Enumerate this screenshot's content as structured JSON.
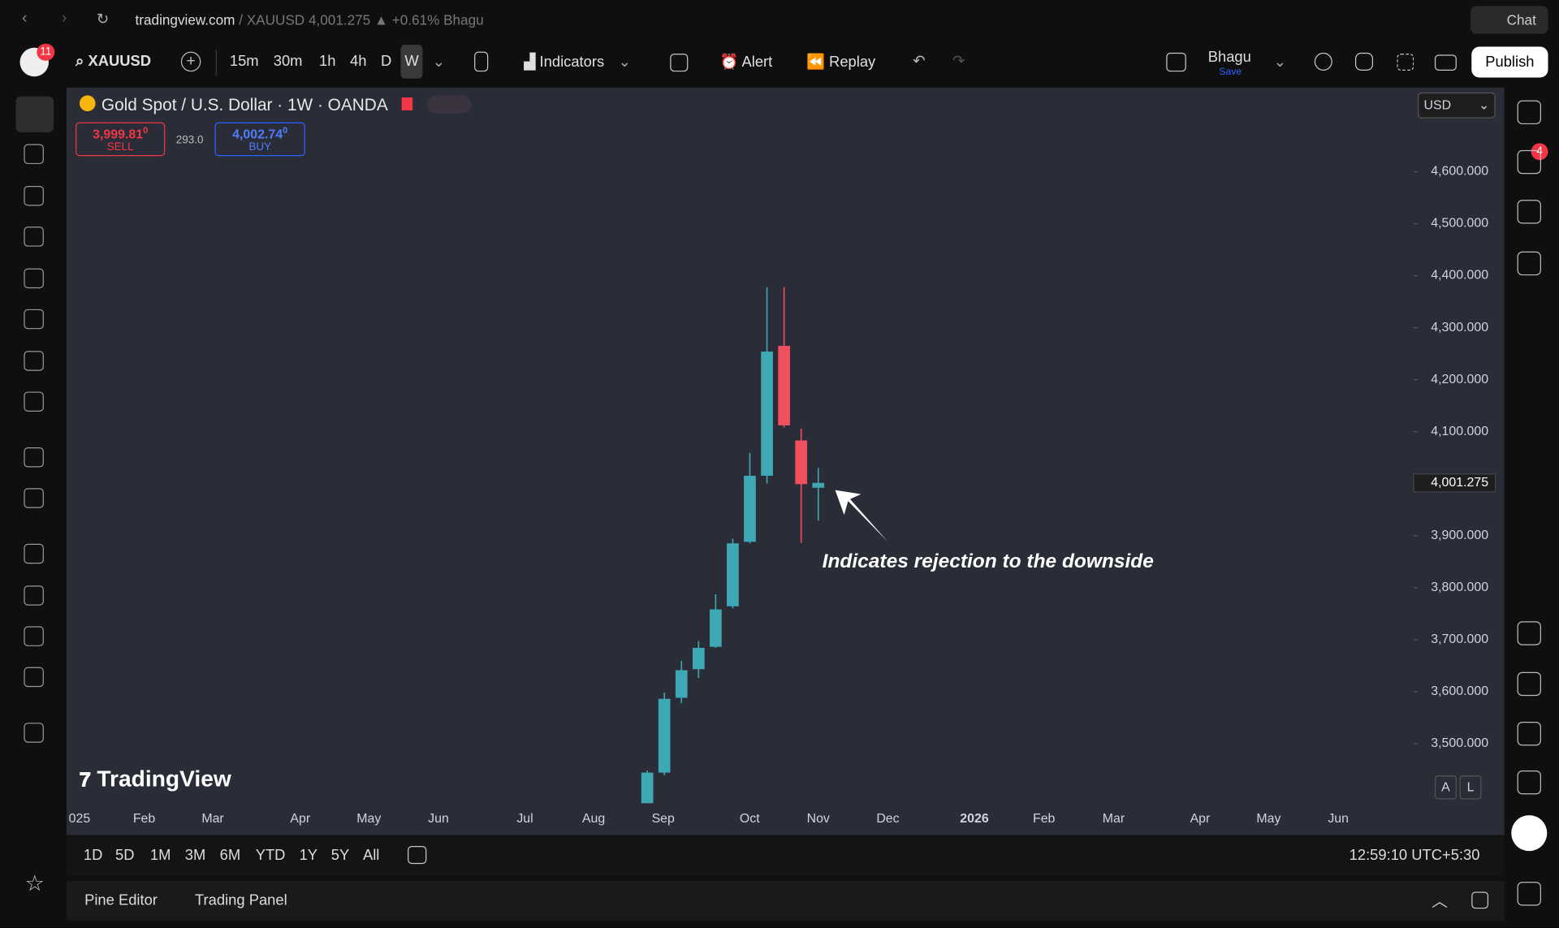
{
  "browser": {
    "domain": "tradingview.com",
    "tab_info": "/ XAUUSD 4,001.275 ▲ +0.61% Bhagu",
    "chat": "Chat"
  },
  "toolbar": {
    "badge": "11",
    "symbol": "XAUUSD",
    "intervals": [
      "15m",
      "30m",
      "1h",
      "4h",
      "D",
      "W"
    ],
    "indicators": "Indicators",
    "alert": "Alert",
    "replay": "Replay",
    "layout_name": "Bhagu",
    "save": "Save",
    "publish": "Publish"
  },
  "trade": {
    "sell_price": "3,999.81",
    "sell_sup": "0",
    "sell": "SELL",
    "spread": "293.0",
    "buy_price": "4,002.74",
    "buy_sup": "0",
    "buy": "BUY"
  },
  "currency": "USD",
  "alert_badge": "4",
  "logo": "TradingView",
  "scale_buttons": [
    "A",
    "L"
  ],
  "ranges": [
    "1D",
    "5D",
    "1M",
    "3M",
    "6M",
    "YTD",
    "1Y",
    "5Y",
    "All"
  ],
  "clock": "12:59:10 UTC+5:30",
  "panels": [
    "Pine Editor",
    "Trading Panel"
  ],
  "chart_data": {
    "type": "candlestick",
    "title": "Gold Spot / U.S. Dollar · 1W · OANDA",
    "open": [
      3385,
      3444,
      3588,
      3643,
      3686,
      3764,
      3888,
      4015,
      4265,
      4083,
      3992
    ],
    "high": [
      3448,
      3598,
      3659,
      3697,
      3787,
      3894,
      4059,
      4378,
      4378,
      4106,
      4030
    ],
    "low": [
      3385,
      3439,
      3578,
      3626,
      3684,
      3760,
      3885,
      4000,
      4108,
      3886,
      3929
    ],
    "close": [
      3444,
      3586,
      3641,
      3684,
      3758,
      3885,
      4015,
      4254,
      4112,
      3999,
      4001.275
    ],
    "up_color": "#3fa8b5",
    "down_color": "#f0505e",
    "ylim": [
      3385,
      4762
    ],
    "yticks": [
      {
        "value": 3500,
        "label": "3,500.000"
      },
      {
        "value": 3600,
        "label": "3,600.000"
      },
      {
        "value": 3700,
        "label": "3,700.000"
      },
      {
        "value": 3800,
        "label": "3,800.000"
      },
      {
        "value": 3900,
        "label": "3,900.000"
      },
      {
        "value": 4000,
        "label": "4,000.000"
      },
      {
        "value": 4100,
        "label": "4,100.000"
      },
      {
        "value": 4200,
        "label": "4,200.000"
      },
      {
        "value": 4300,
        "label": "4,300.000"
      },
      {
        "value": 4400,
        "label": "4,400.000"
      },
      {
        "value": 4500,
        "label": "4,500.000"
      },
      {
        "value": 4600,
        "label": "4,600.000"
      }
    ],
    "last_price": {
      "value": 4001.275,
      "label": "4,001.275"
    },
    "x_labels": [
      "025",
      "Feb",
      "Mar",
      "Apr",
      "May",
      "Jun",
      "Jul",
      "Aug",
      "Sep",
      "Oct",
      "Nov",
      "Dec",
      "2026",
      "Feb",
      "Mar",
      "Apr",
      "May",
      "Jun"
    ],
    "annotation": "Indicates rejection to the downside"
  }
}
